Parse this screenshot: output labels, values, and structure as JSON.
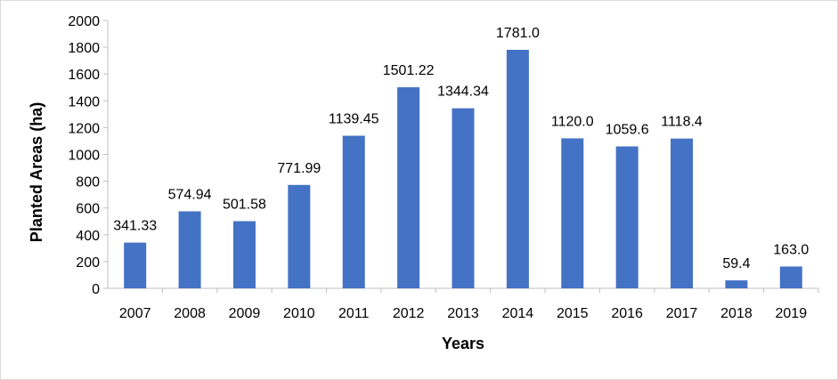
{
  "chart_data": {
    "type": "bar",
    "title": "",
    "xlabel": "Years",
    "ylabel": "Planted Areas (ha)",
    "ylim": [
      0,
      2000
    ],
    "yticks": [
      "0",
      "200",
      "400",
      "600",
      "800",
      "1000",
      "1200",
      "1400",
      "1600",
      "1800",
      "2000"
    ],
    "categories": [
      "2007",
      "2008",
      "2009",
      "2010",
      "2011",
      "2012",
      "2013",
      "2014",
      "2015",
      "2016",
      "2017",
      "2018",
      "2019"
    ],
    "values": [
      341.33,
      574.94,
      501.58,
      771.99,
      1139.45,
      1501.22,
      1344.34,
      1781.0,
      1120.0,
      1059.6,
      1118.4,
      59.4,
      163.0
    ],
    "value_labels": [
      "341.33",
      "574.94",
      "501.58",
      "771.99",
      "1139.45",
      "1501.22",
      "1344.34",
      "1781.0",
      "1120.0",
      "1059.6",
      "1118.4",
      "59.4",
      "163.0"
    ],
    "bar_color": "#4472c4",
    "grid": false,
    "legend": "none"
  }
}
